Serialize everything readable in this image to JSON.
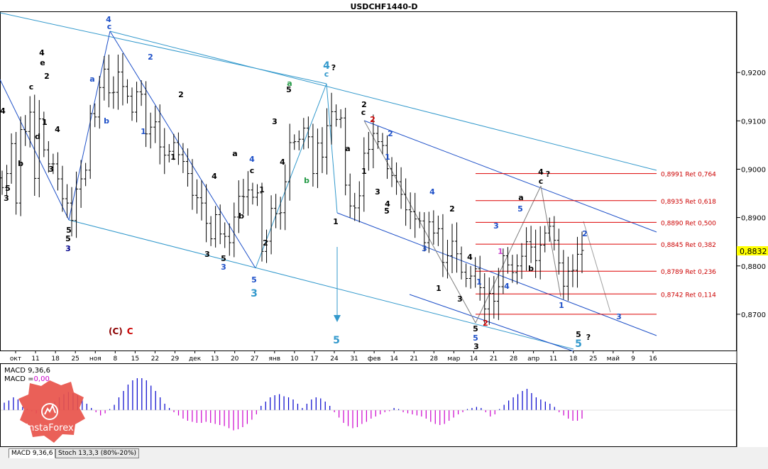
{
  "title": "USDCHF1440-D",
  "chart_data": {
    "type": "candlestick",
    "symbol": "USDCHF",
    "timeframe": "D1",
    "ylim": [
      0.8625,
      0.9325
    ],
    "price_ticks": [
      "0,8700",
      "0,8800",
      "0,8900",
      "0,9000",
      "0,9100",
      "0,9200"
    ],
    "price_tick_values": [
      0.87,
      0.88,
      0.89,
      0.9,
      0.91,
      0.92
    ],
    "current_price": "0,8832",
    "current_price_value": 0.8832,
    "date_ticks": [
      "окт",
      "11",
      "18",
      "25",
      "ноя",
      "8",
      "15",
      "22",
      "29",
      "дек",
      "13",
      "20",
      "27",
      "янв",
      "10",
      "17",
      "24",
      "31",
      "фев",
      "14",
      "21",
      "28",
      "мар",
      "14",
      "21",
      "28",
      "апр",
      "11",
      "18",
      "25",
      "май",
      "9",
      "16"
    ],
    "fib_levels": [
      {
        "label": "0,8991 Ret 0,764",
        "value": 0.8991
      },
      {
        "label": "0,8935 Ret 0,618",
        "value": 0.8935
      },
      {
        "label": "0,8890 Ret 0,500",
        "value": 0.889
      },
      {
        "label": "0,8845 Ret 0,382",
        "value": 0.8845
      },
      {
        "label": "0,8789 Ret 0,236",
        "value": 0.8789
      },
      {
        "label": "0,8742 Ret 0,114",
        "value": 0.8742
      },
      {
        "label": "",
        "value": 0.87
      }
    ],
    "series": [
      {
        "name": "USDCHF",
        "close": [
          0.8962,
          0.8991,
          0.9053,
          0.893,
          0.9082,
          0.9078,
          0.9118,
          0.8981,
          0.9104,
          0.904,
          0.9011,
          0.9011,
          0.898,
          0.8939,
          0.893,
          0.8894,
          0.8959,
          0.898,
          0.8998,
          0.9115,
          0.9108,
          0.9169,
          0.9207,
          0.9158,
          0.9159,
          0.9201,
          0.9171,
          0.9151,
          0.9118,
          0.916,
          0.9155,
          0.9073,
          0.9087,
          0.9098,
          0.9046,
          0.9029,
          0.9037,
          0.9055,
          0.903,
          0.9016,
          0.8991,
          0.8946,
          0.8941,
          0.893,
          0.8888,
          0.8856,
          0.8906,
          0.8866,
          0.8861,
          0.8848,
          0.8901,
          0.8944,
          0.8943,
          0.8957,
          0.8942,
          0.8951,
          0.883,
          0.8851,
          0.8919,
          0.8908,
          0.891,
          0.8974,
          0.9055,
          0.9057,
          0.9062,
          0.9085,
          0.9067,
          0.8991,
          0.9054,
          0.9025,
          0.909,
          0.9119,
          0.9103,
          0.9106,
          0.8967,
          0.8924,
          0.892,
          0.8945,
          0.9033,
          0.9041,
          0.9074,
          0.9057,
          0.9049,
          0.9001,
          0.8987,
          0.8974,
          0.8948,
          0.8916,
          0.8912,
          0.8897,
          0.8893,
          0.8848,
          0.8891,
          0.8868,
          0.8877,
          0.8807,
          0.8821,
          0.8851,
          0.8825,
          0.8787,
          0.8774,
          0.8779,
          0.8794,
          0.8755,
          0.8711,
          0.8743,
          0.8727,
          0.8757,
          0.8821,
          0.8802,
          0.8786,
          0.88,
          0.882,
          0.885,
          0.8839,
          0.8811,
          0.8843,
          0.8868,
          0.8882,
          0.8853,
          0.8806,
          0.8758,
          0.8789,
          0.8791,
          0.8824,
          0.8832
        ]
      }
    ],
    "macd_label": "MACD 9,36,6",
    "macd_value_label": "MACD =",
    "macd_value": "0,00",
    "macd_hist": [
      0.0007,
      0.0009,
      0.0012,
      0.001,
      0.0003,
      0.0001,
      -0.0001,
      -0.0003,
      -0.0004,
      -0.0002,
      0.0003,
      0.0008,
      0.0012,
      0.0015,
      0.0017,
      0.0016,
      0.0014,
      0.001,
      0.0006,
      0.0002,
      -0.0002,
      -0.0005,
      -0.0003,
      0.0001,
      0.0005,
      0.0012,
      0.0018,
      0.0024,
      0.0028,
      0.003,
      0.003,
      0.0028,
      0.0023,
      0.0018,
      0.0012,
      0.0006,
      0.0002,
      -0.0002,
      -0.0005,
      -0.0008,
      -0.001,
      -0.0011,
      -0.0012,
      -0.0012,
      -0.0011,
      -0.0012,
      -0.0013,
      -0.0014,
      -0.0015,
      -0.0017,
      -0.0019,
      -0.0018,
      -0.0016,
      -0.0013,
      -0.0009,
      -0.0004,
      0.0004,
      0.0008,
      0.0012,
      0.0014,
      0.0015,
      0.0013,
      0.0012,
      0.001,
      0.0006,
      0.0002,
      0.0006,
      0.001,
      0.0012,
      0.0011,
      0.0008,
      0.0004,
      -0.0002,
      -0.0007,
      -0.0012,
      -0.0015,
      -0.0017,
      -0.0016,
      -0.0013,
      -0.0011,
      -0.0008,
      -0.0006,
      -0.0004,
      -0.0002,
      -0.0001,
      0.0002,
      0.0001,
      -0.0002,
      -0.0003,
      -0.0004,
      -0.0005,
      -0.0006,
      -0.0008,
      -0.0011,
      -0.0013,
      -0.0014,
      -0.0013,
      -0.001,
      -0.0007,
      -0.0004,
      -0.0002,
      0.0001,
      0.0002,
      0.0003,
      0.0002,
      -0.0002,
      -0.0006,
      -0.0004,
      0.0001,
      0.0005,
      0.0009,
      0.0012,
      0.0015,
      0.0018,
      0.002,
      0.0016,
      0.0012,
      0.001,
      0.0008,
      0.0006,
      0.0003,
      -0.0002,
      -0.0005,
      -0.0008,
      -0.001,
      -0.001,
      -0.0008
    ]
  },
  "wave_labels": [
    {
      "text": "4",
      "color": "#000000"
    },
    {
      "text": "5",
      "color": "#000000"
    },
    {
      "text": "3",
      "color": "#000000"
    },
    {
      "text": "b",
      "color": "#000000"
    },
    {
      "text": "4",
      "color": "#000000"
    },
    {
      "text": "e",
      "color": "#000000"
    },
    {
      "text": "2",
      "color": "#000000"
    },
    {
      "text": "c",
      "color": "#000000"
    },
    {
      "text": "1",
      "color": "#000000"
    },
    {
      "text": "d",
      "color": "#000000"
    },
    {
      "text": "3",
      "color": "#000000"
    },
    {
      "text": "4",
      "color": "#000000"
    },
    {
      "text": "5",
      "color": "#000000"
    },
    {
      "text": "5",
      "color": "#000000"
    },
    {
      "text": "3",
      "color": "#00008b"
    },
    {
      "text": "4",
      "color": "#1e50c8"
    },
    {
      "text": "c",
      "color": "#1e50c8"
    },
    {
      "text": "a",
      "color": "#1e50c8"
    },
    {
      "text": "b",
      "color": "#1e50c8"
    },
    {
      "text": "2",
      "color": "#1e50c8"
    },
    {
      "text": "1",
      "color": "#1e50c8"
    },
    {
      "text": "2",
      "color": "#000000"
    },
    {
      "text": "1",
      "color": "#000000"
    },
    {
      "text": "4",
      "color": "#000000"
    },
    {
      "text": "3",
      "color": "#000000"
    },
    {
      "text": "5",
      "color": "#000000"
    },
    {
      "text": "3",
      "color": "#1e50c8"
    },
    {
      "text": "4",
      "color": "#1e50c8"
    },
    {
      "text": "c",
      "color": "#000000"
    },
    {
      "text": "a",
      "color": "#000000"
    },
    {
      "text": "b",
      "color": "#000000"
    },
    {
      "text": "1",
      "color": "#000000"
    },
    {
      "text": "2",
      "color": "#000000"
    },
    {
      "text": "5",
      "color": "#1e50c8"
    },
    {
      "text": "3",
      "color": "#3399cc"
    },
    {
      "text": "a",
      "color": "#229944"
    },
    {
      "text": "5",
      "color": "#000000"
    },
    {
      "text": "3",
      "color": "#000000"
    },
    {
      "text": "4",
      "color": "#000000"
    },
    {
      "text": "b",
      "color": "#229944"
    },
    {
      "text": "4",
      "color": "#3399cc"
    },
    {
      "text": "c",
      "color": "#3399cc"
    },
    {
      "text": "?",
      "color": "#000000"
    },
    {
      "text": "1",
      "color": "#000000"
    },
    {
      "text": "5",
      "color": "#3399cc"
    },
    {
      "text": "2",
      "color": "#000000"
    },
    {
      "text": "c",
      "color": "#000000"
    },
    {
      "text": "2",
      "color": "#cc0000"
    },
    {
      "text": "a",
      "color": "#000000"
    },
    {
      "text": "1",
      "color": "#000000"
    },
    {
      "text": "3",
      "color": "#000000"
    },
    {
      "text": "4",
      "color": "#000000"
    },
    {
      "text": "5",
      "color": "#000000"
    },
    {
      "text": "1",
      "color": "#1e50c8"
    },
    {
      "text": "2",
      "color": "#1e50c8"
    },
    {
      "text": "3",
      "color": "#1e50c8"
    },
    {
      "text": "4",
      "color": "#1e50c8"
    },
    {
      "text": "2",
      "color": "#000000"
    },
    {
      "text": "1",
      "color": "#000000"
    },
    {
      "text": "3",
      "color": "#000000"
    },
    {
      "text": "4",
      "color": "#000000"
    },
    {
      "text": "5",
      "color": "#000000"
    },
    {
      "text": "5",
      "color": "#1e50c8"
    },
    {
      "text": "3",
      "color": "#000000"
    },
    {
      "text": "2",
      "color": "#cc0000"
    },
    {
      "text": "1",
      "color": "#1e50c8"
    },
    {
      "text": "1",
      "color": "#cc44cc"
    },
    {
      "text": "3",
      "color": "#1e50c8"
    },
    {
      "text": "4",
      "color": "#1e50c8"
    },
    {
      "text": "5",
      "color": "#1e50c8"
    },
    {
      "text": "a",
      "color": "#000000"
    },
    {
      "text": "b",
      "color": "#000000"
    },
    {
      "text": "4",
      "color": "#000000"
    },
    {
      "text": "c",
      "color": "#000000"
    },
    {
      "text": "?",
      "color": "#000000"
    },
    {
      "text": "1",
      "color": "#1e50c8"
    },
    {
      "text": "2",
      "color": "#1e50c8"
    },
    {
      "text": "3",
      "color": "#1e50c8"
    },
    {
      "text": "5",
      "color": "#000000"
    },
    {
      "text": "?",
      "color": "#000000"
    },
    {
      "text": "5",
      "color": "#3399cc"
    }
  ],
  "corner_label": {
    "part1": "(C)",
    "part2": "C"
  },
  "logo_text": "InstaForex",
  "tabs": [
    "MACD 9,36,6",
    "Stoch 13,3,3 (80%-20%)"
  ]
}
